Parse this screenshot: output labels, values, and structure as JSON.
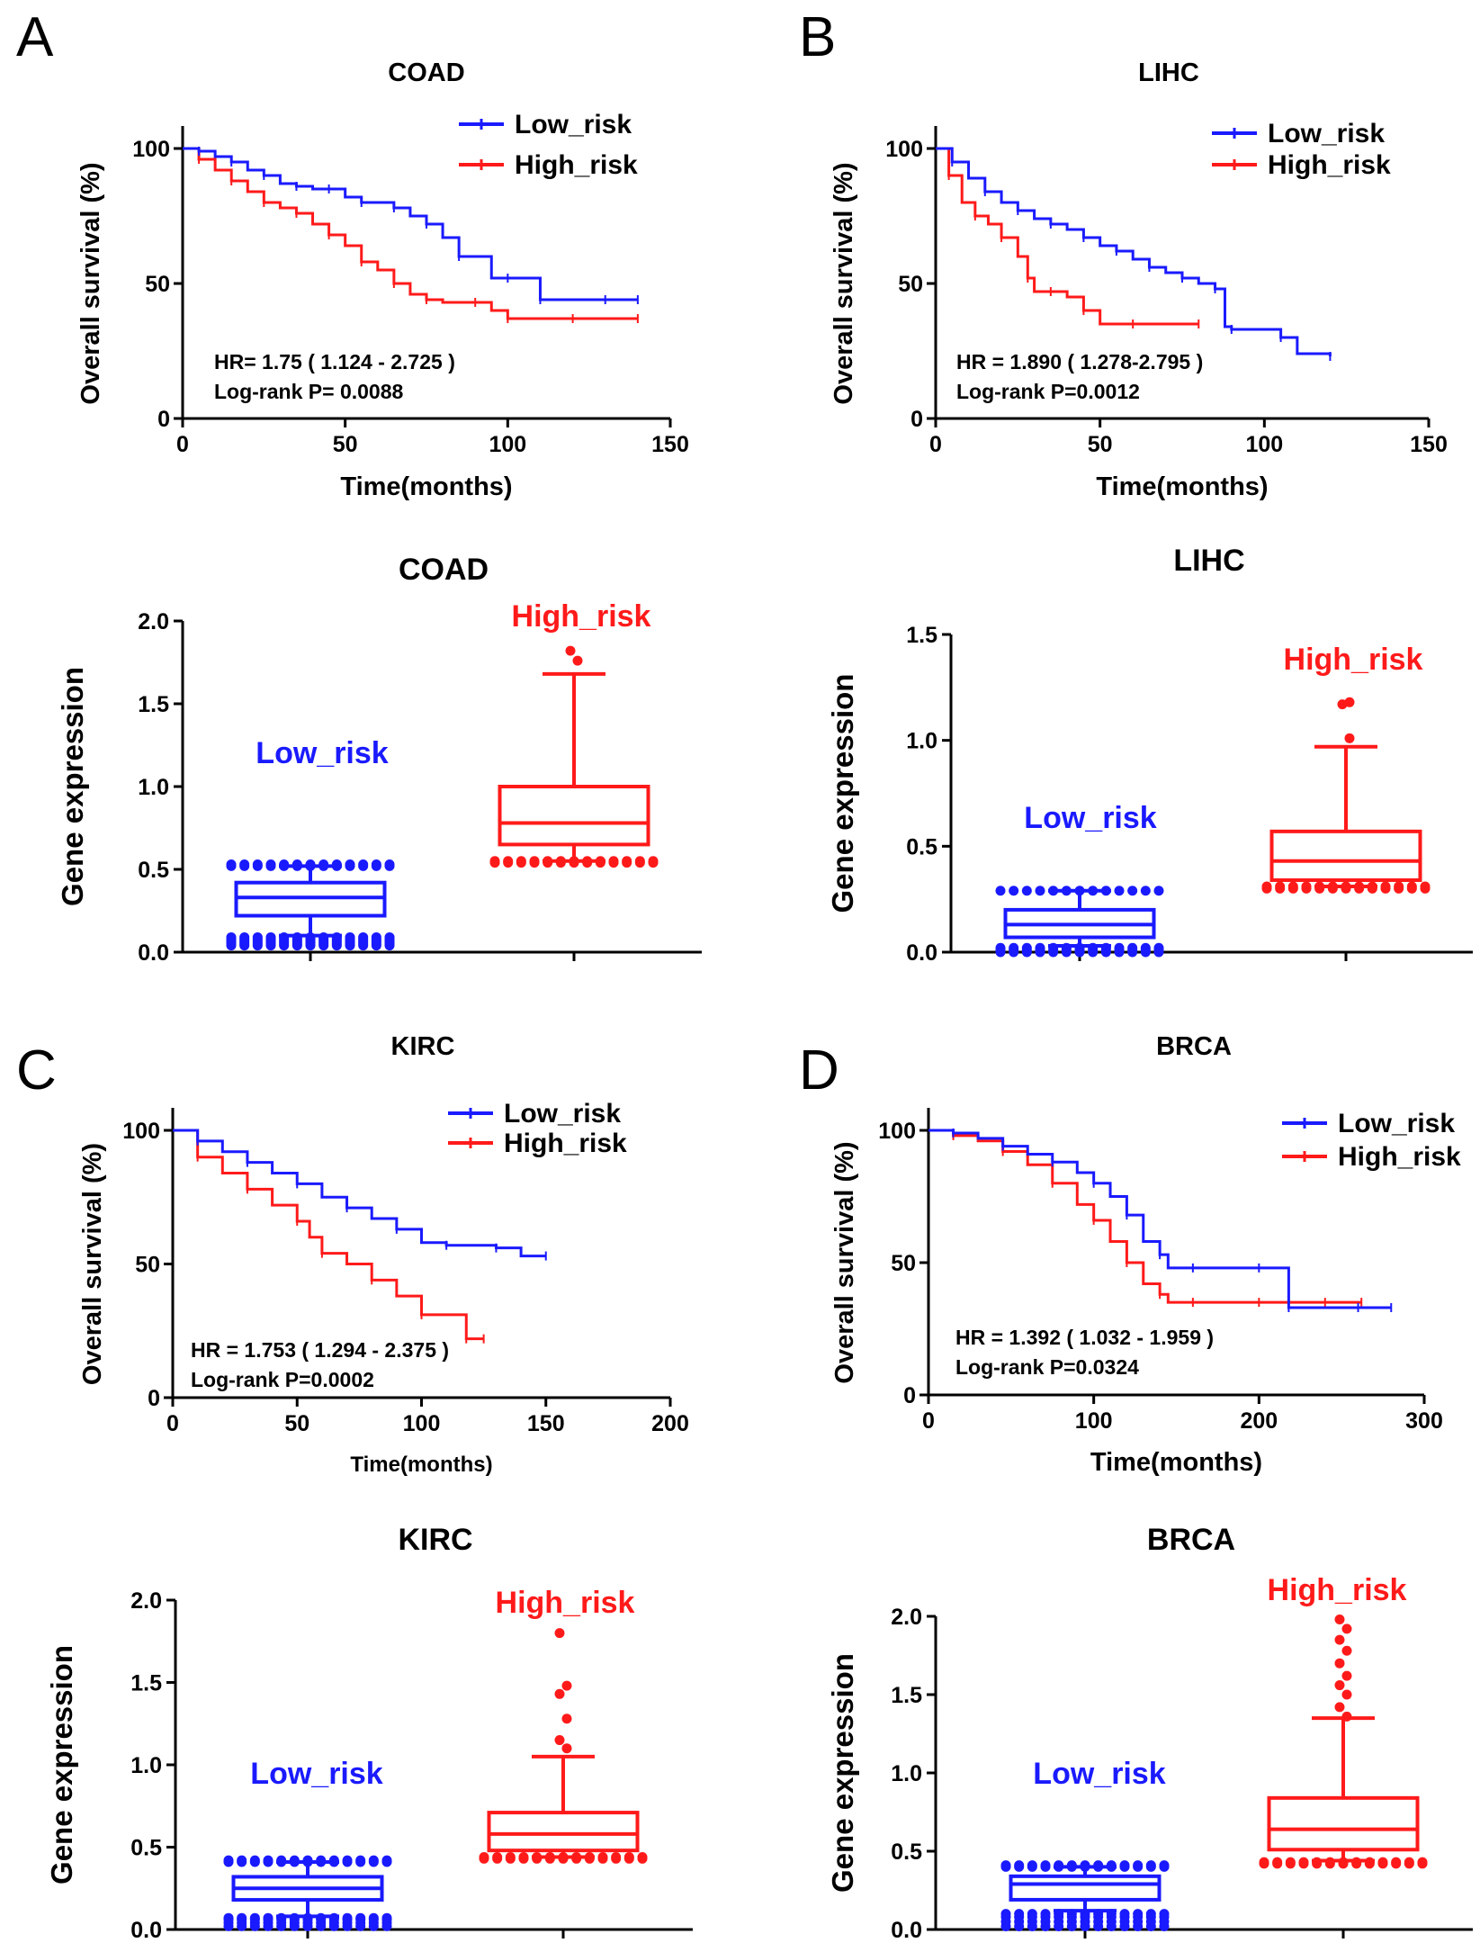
{
  "colors": {
    "low": "#1a1aff",
    "high": "#ff1a1a",
    "axis": "#000000"
  },
  "panels": [
    {
      "letter": "A",
      "km": {
        "title": "COAD",
        "xlabel": "Time(months)",
        "ylabel": "Overall survival (%)",
        "xlim": [
          0,
          150
        ],
        "xticks": [
          0,
          50,
          100,
          150
        ],
        "ylim": [
          0,
          100
        ],
        "yticks": [
          0,
          50,
          100
        ],
        "legend_low": "Low_risk",
        "legend_high": "High_risk",
        "hr_text": "HR= 1.75 ( 1.124 - 2.725 )",
        "p_text": "Log-rank P= 0.0088",
        "low_series": [
          [
            0,
            100
          ],
          [
            5,
            99
          ],
          [
            10,
            97
          ],
          [
            15,
            95
          ],
          [
            20,
            92
          ],
          [
            25,
            90
          ],
          [
            30,
            87
          ],
          [
            35,
            86
          ],
          [
            40,
            85
          ],
          [
            45,
            85
          ],
          [
            50,
            82
          ],
          [
            55,
            80
          ],
          [
            60,
            80
          ],
          [
            65,
            78
          ],
          [
            70,
            75
          ],
          [
            75,
            72
          ],
          [
            80,
            67
          ],
          [
            85,
            60
          ],
          [
            95,
            52
          ],
          [
            100,
            52
          ],
          [
            105,
            52
          ],
          [
            110,
            44
          ],
          [
            120,
            44
          ],
          [
            130,
            44
          ],
          [
            140,
            44
          ]
        ],
        "high_series": [
          [
            0,
            100
          ],
          [
            5,
            96
          ],
          [
            10,
            92
          ],
          [
            15,
            88
          ],
          [
            20,
            84
          ],
          [
            25,
            80
          ],
          [
            30,
            78
          ],
          [
            35,
            76
          ],
          [
            40,
            72
          ],
          [
            45,
            68
          ],
          [
            50,
            64
          ],
          [
            55,
            58
          ],
          [
            60,
            55
          ],
          [
            65,
            50
          ],
          [
            70,
            46
          ],
          [
            75,
            44
          ],
          [
            80,
            43
          ],
          [
            90,
            43
          ],
          [
            95,
            40
          ],
          [
            100,
            37
          ],
          [
            110,
            37
          ],
          [
            120,
            37
          ],
          [
            130,
            37
          ],
          [
            140,
            37
          ]
        ]
      },
      "box": {
        "title": "COAD",
        "ylabel": "Gene expression",
        "ylim": [
          0,
          2.0
        ],
        "yticks": [
          "0.0",
          "0.5",
          "1.0",
          "1.5",
          "2.0"
        ],
        "low_label": "Low_risk",
        "high_label": "High_risk",
        "low": {
          "whisker_low": 0.1,
          "q1": 0.22,
          "median": 0.33,
          "q3": 0.42,
          "whisker_high": 0.52,
          "outliers": [
            0.04,
            0.05,
            0.06,
            0.07,
            0.08,
            0.09,
            0.52,
            0.53
          ]
        },
        "high": {
          "whisker_low": 0.55,
          "q1": 0.65,
          "median": 0.78,
          "q3": 1.0,
          "whisker_high": 1.68,
          "outliers": [
            0.54,
            0.55,
            1.76,
            1.82
          ]
        }
      }
    },
    {
      "letter": "B",
      "km": {
        "title": "LIHC",
        "xlabel": "Time(months)",
        "ylabel": "Overall survival (%)",
        "xlim": [
          0,
          150
        ],
        "xticks": [
          0,
          50,
          100,
          150
        ],
        "ylim": [
          0,
          100
        ],
        "yticks": [
          0,
          50,
          100
        ],
        "legend_low": "Low_risk",
        "legend_high": "High_risk",
        "hr_text": "HR = 1.890 ( 1.278-2.795 )",
        "p_text": "Log-rank P=0.0012",
        "low_series": [
          [
            0,
            100
          ],
          [
            5,
            95
          ],
          [
            10,
            89
          ],
          [
            15,
            84
          ],
          [
            20,
            80
          ],
          [
            25,
            77
          ],
          [
            30,
            74
          ],
          [
            35,
            72
          ],
          [
            40,
            70
          ],
          [
            45,
            67
          ],
          [
            50,
            64
          ],
          [
            55,
            62
          ],
          [
            60,
            59
          ],
          [
            65,
            56
          ],
          [
            70,
            54
          ],
          [
            75,
            52
          ],
          [
            80,
            50
          ],
          [
            85,
            48
          ],
          [
            88,
            34
          ],
          [
            90,
            33
          ],
          [
            100,
            33
          ],
          [
            105,
            30
          ],
          [
            110,
            24
          ],
          [
            120,
            23
          ]
        ],
        "high_series": [
          [
            0,
            100
          ],
          [
            4,
            90
          ],
          [
            8,
            80
          ],
          [
            12,
            75
          ],
          [
            16,
            72
          ],
          [
            20,
            67
          ],
          [
            25,
            60
          ],
          [
            28,
            52
          ],
          [
            30,
            47
          ],
          [
            35,
            47
          ],
          [
            40,
            45
          ],
          [
            45,
            40
          ],
          [
            50,
            35
          ],
          [
            60,
            35
          ],
          [
            70,
            35
          ],
          [
            80,
            35
          ]
        ]
      },
      "box": {
        "title": "LIHC",
        "ylabel": "Gene expression",
        "ylim": [
          0,
          1.5
        ],
        "yticks": [
          "0.0",
          "0.5",
          "1.0",
          "1.5"
        ],
        "low_label": "Low_risk",
        "high_label": "High_risk",
        "low": {
          "whisker_low": 0.03,
          "q1": 0.07,
          "median": 0.13,
          "q3": 0.2,
          "whisker_high": 0.29,
          "outliers": [
            0.0,
            0.01,
            0.02,
            0.29
          ]
        },
        "high": {
          "whisker_low": 0.31,
          "q1": 0.34,
          "median": 0.43,
          "q3": 0.57,
          "whisker_high": 0.97,
          "outliers": [
            0.3,
            0.31,
            1.01,
            1.17,
            1.18
          ]
        }
      }
    },
    {
      "letter": "C",
      "km": {
        "title": "KIRC",
        "xlabel": "Time(months)",
        "ylabel": "Overall survival (%)",
        "xlim": [
          0,
          200
        ],
        "xticks": [
          0,
          50,
          100,
          150,
          200
        ],
        "ylim": [
          0,
          100
        ],
        "yticks": [
          0,
          50,
          100
        ],
        "legend_low": "Low_risk",
        "legend_high": "High_risk",
        "hr_text": "HR = 1.753 ( 1.294 - 2.375 )",
        "p_text": "Log-rank P=0.0002",
        "low_series": [
          [
            0,
            100
          ],
          [
            10,
            96
          ],
          [
            20,
            92
          ],
          [
            30,
            88
          ],
          [
            40,
            84
          ],
          [
            50,
            80
          ],
          [
            60,
            75
          ],
          [
            70,
            71
          ],
          [
            80,
            67
          ],
          [
            90,
            63
          ],
          [
            100,
            58
          ],
          [
            110,
            57
          ],
          [
            120,
            57
          ],
          [
            130,
            56
          ],
          [
            140,
            53
          ],
          [
            150,
            53
          ]
        ],
        "high_series": [
          [
            0,
            100
          ],
          [
            10,
            90
          ],
          [
            20,
            84
          ],
          [
            30,
            78
          ],
          [
            40,
            72
          ],
          [
            50,
            66
          ],
          [
            55,
            60
          ],
          [
            60,
            54
          ],
          [
            70,
            50
          ],
          [
            80,
            44
          ],
          [
            90,
            38
          ],
          [
            100,
            31
          ],
          [
            110,
            31
          ],
          [
            118,
            22
          ],
          [
            125,
            22
          ]
        ]
      },
      "box": {
        "title": "KIRC",
        "ylabel": "Gene expression",
        "ylim": [
          0,
          2.0
        ],
        "yticks": [
          "0.0",
          "0.5",
          "1.0",
          "1.5",
          "2.0"
        ],
        "low_label": "Low_risk",
        "high_label": "High_risk",
        "low": {
          "whisker_low": 0.08,
          "q1": 0.18,
          "median": 0.25,
          "q3": 0.32,
          "whisker_high": 0.41,
          "outliers": [
            0.02,
            0.04,
            0.06,
            0.07,
            0.41,
            0.42
          ]
        },
        "high": {
          "whisker_low": 0.44,
          "q1": 0.48,
          "median": 0.58,
          "q3": 0.71,
          "whisker_high": 1.05,
          "outliers": [
            0.43,
            0.44,
            1.1,
            1.15,
            1.28,
            1.43,
            1.48,
            1.8
          ]
        }
      }
    },
    {
      "letter": "D",
      "km": {
        "title": "BRCA",
        "xlabel": "Time(months)",
        "ylabel": "Overall survival (%)",
        "xlim": [
          0,
          300
        ],
        "xticks": [
          0,
          100,
          200,
          300
        ],
        "ylim": [
          0,
          100
        ],
        "yticks": [
          0,
          50,
          100
        ],
        "legend_low": "Low_risk",
        "legend_high": "High_risk",
        "hr_text": "HR = 1.392 ( 1.032 - 1.959 )",
        "p_text": "Log-rank P=0.0324",
        "low_series": [
          [
            0,
            100
          ],
          [
            15,
            99
          ],
          [
            30,
            97
          ],
          [
            45,
            94
          ],
          [
            60,
            91
          ],
          [
            75,
            88
          ],
          [
            90,
            84
          ],
          [
            100,
            80
          ],
          [
            110,
            75
          ],
          [
            120,
            68
          ],
          [
            130,
            58
          ],
          [
            140,
            53
          ],
          [
            145,
            48
          ],
          [
            160,
            48
          ],
          [
            180,
            48
          ],
          [
            200,
            48
          ],
          [
            215,
            48
          ],
          [
            218,
            33
          ],
          [
            240,
            33
          ],
          [
            260,
            33
          ],
          [
            280,
            33
          ]
        ],
        "high_series": [
          [
            0,
            100
          ],
          [
            15,
            98
          ],
          [
            30,
            96
          ],
          [
            45,
            92
          ],
          [
            60,
            87
          ],
          [
            75,
            80
          ],
          [
            90,
            72
          ],
          [
            100,
            66
          ],
          [
            110,
            58
          ],
          [
            120,
            50
          ],
          [
            130,
            42
          ],
          [
            140,
            38
          ],
          [
            145,
            35
          ],
          [
            160,
            35
          ],
          [
            180,
            35
          ],
          [
            200,
            35
          ],
          [
            220,
            35
          ],
          [
            240,
            35
          ],
          [
            262,
            35
          ]
        ]
      },
      "box": {
        "title": "BRCA",
        "ylabel": "Gene expression",
        "ylim": [
          0,
          2.0
        ],
        "yticks": [
          "0.0",
          "0.5",
          "1.0",
          "1.5",
          "2.0"
        ],
        "low_label": "Low_risk",
        "high_label": "High_risk",
        "low": {
          "whisker_low": 0.12,
          "q1": 0.19,
          "median": 0.29,
          "q3": 0.34,
          "whisker_high": 0.4,
          "outliers": [
            0.02,
            0.05,
            0.08,
            0.1,
            0.4,
            0.41
          ]
        },
        "high": {
          "whisker_low": 0.44,
          "q1": 0.51,
          "median": 0.64,
          "q3": 0.84,
          "whisker_high": 1.35,
          "outliers": [
            0.42,
            0.43,
            1.36,
            1.42,
            1.5,
            1.56,
            1.62,
            1.7,
            1.78,
            1.85,
            1.92,
            1.98
          ]
        }
      }
    }
  ],
  "chart_data": [
    {
      "type": "line",
      "title": "COAD",
      "xlabel": "Time(months)",
      "ylabel": "Overall survival (%)",
      "series": [
        {
          "name": "Low_risk"
        },
        {
          "name": "High_risk"
        }
      ]
    },
    {
      "type": "line",
      "title": "LIHC",
      "xlabel": "Time(months)",
      "ylabel": "Overall survival (%)",
      "series": [
        {
          "name": "Low_risk"
        },
        {
          "name": "High_risk"
        }
      ]
    },
    {
      "type": "line",
      "title": "KIRC",
      "xlabel": "Time(months)",
      "ylabel": "Overall survival (%)",
      "series": [
        {
          "name": "Low_risk"
        },
        {
          "name": "High_risk"
        }
      ]
    },
    {
      "type": "line",
      "title": "BRCA",
      "xlabel": "Time(months)",
      "ylabel": "Overall survival (%)",
      "series": [
        {
          "name": "Low_risk"
        },
        {
          "name": "High_risk"
        }
      ]
    },
    {
      "type": "box",
      "title": "COAD",
      "ylabel": "Gene expression",
      "categories": [
        "Low_risk",
        "High_risk"
      ]
    },
    {
      "type": "box",
      "title": "LIHC",
      "ylabel": "Gene expression",
      "categories": [
        "Low_risk",
        "High_risk"
      ]
    },
    {
      "type": "box",
      "title": "KIRC",
      "ylabel": "Gene expression",
      "categories": [
        "Low_risk",
        "High_risk"
      ]
    },
    {
      "type": "box",
      "title": "BRCA",
      "ylabel": "Gene expression",
      "categories": [
        "Low_risk",
        "High_risk"
      ]
    }
  ]
}
